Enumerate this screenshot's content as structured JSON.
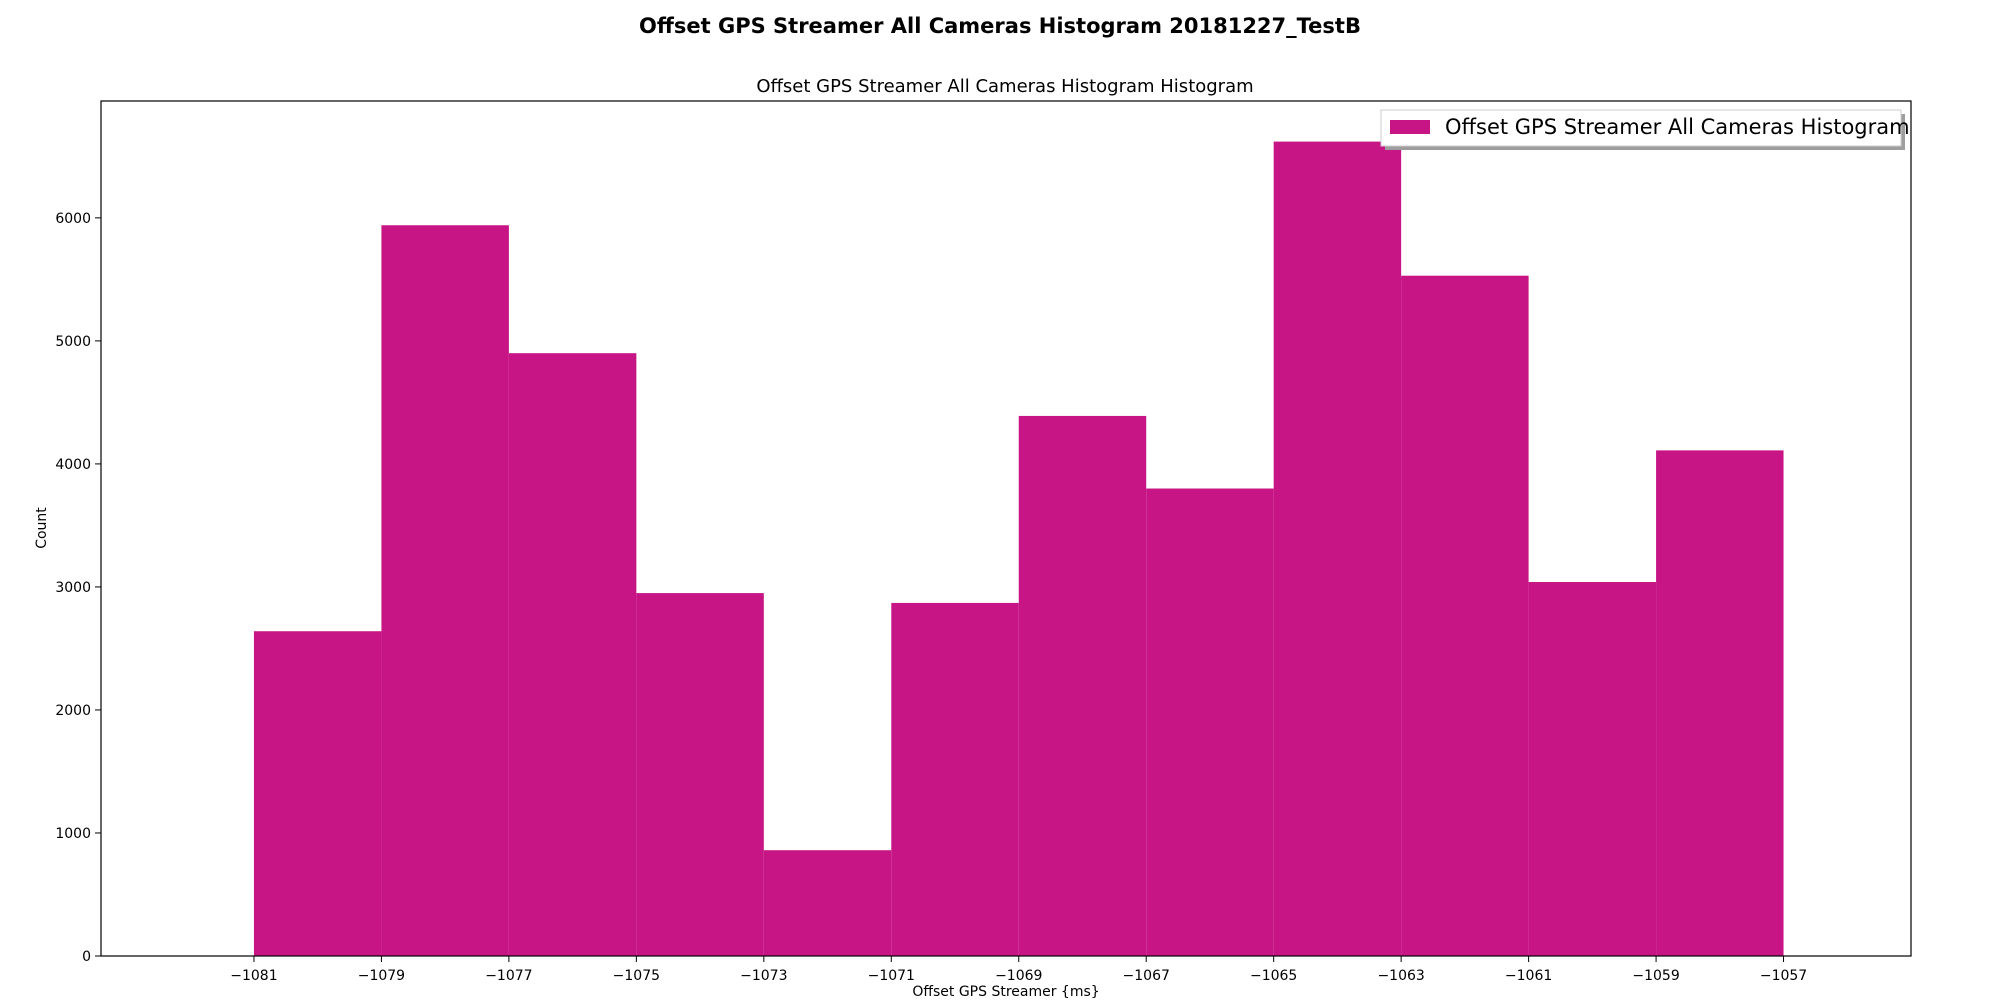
{
  "figure": {
    "suptitle": "Offset GPS Streamer All Cameras Histogram 20181227_TestB"
  },
  "colors": {
    "bar": "#c71585",
    "axes": "#000000",
    "background": "#ffffff"
  },
  "chart_data": {
    "type": "bar",
    "subtype": "histogram",
    "title": "Offset GPS Streamer All Cameras Histogram Histogram",
    "xlabel": "Offset GPS Streamer {ms}",
    "ylabel": "Count",
    "legend_position": "top-right",
    "grid": false,
    "xlim": [
      -1083.4,
      -1055.0
    ],
    "ylim": [
      0,
      6950
    ],
    "bin_edges": [
      -1081,
      -1079,
      -1077,
      -1075,
      -1073,
      -1071,
      -1069,
      -1067,
      -1065,
      -1063,
      -1061,
      -1059,
      -1057
    ],
    "series": [
      {
        "name": "Offset GPS Streamer All Cameras Histogram",
        "values": [
          2640,
          5940,
          4900,
          2950,
          860,
          2870,
          4390,
          3800,
          6620,
          5530,
          3040,
          4110
        ]
      }
    ],
    "xticks": [
      -1081,
      -1079,
      -1077,
      -1075,
      -1073,
      -1071,
      -1069,
      -1067,
      -1065,
      -1063,
      -1061,
      -1059,
      -1057
    ],
    "xtick_labels": [
      "−1081",
      "−1079",
      "−1077",
      "−1075",
      "−1073",
      "−1071",
      "−1069",
      "−1067",
      "−1065",
      "−1063",
      "−1061",
      "−1059",
      "−1057"
    ],
    "yticks": [
      0,
      1000,
      2000,
      3000,
      4000,
      5000,
      6000
    ],
    "ytick_labels": [
      "0",
      "1000",
      "2000",
      "3000",
      "4000",
      "5000",
      "6000"
    ]
  }
}
